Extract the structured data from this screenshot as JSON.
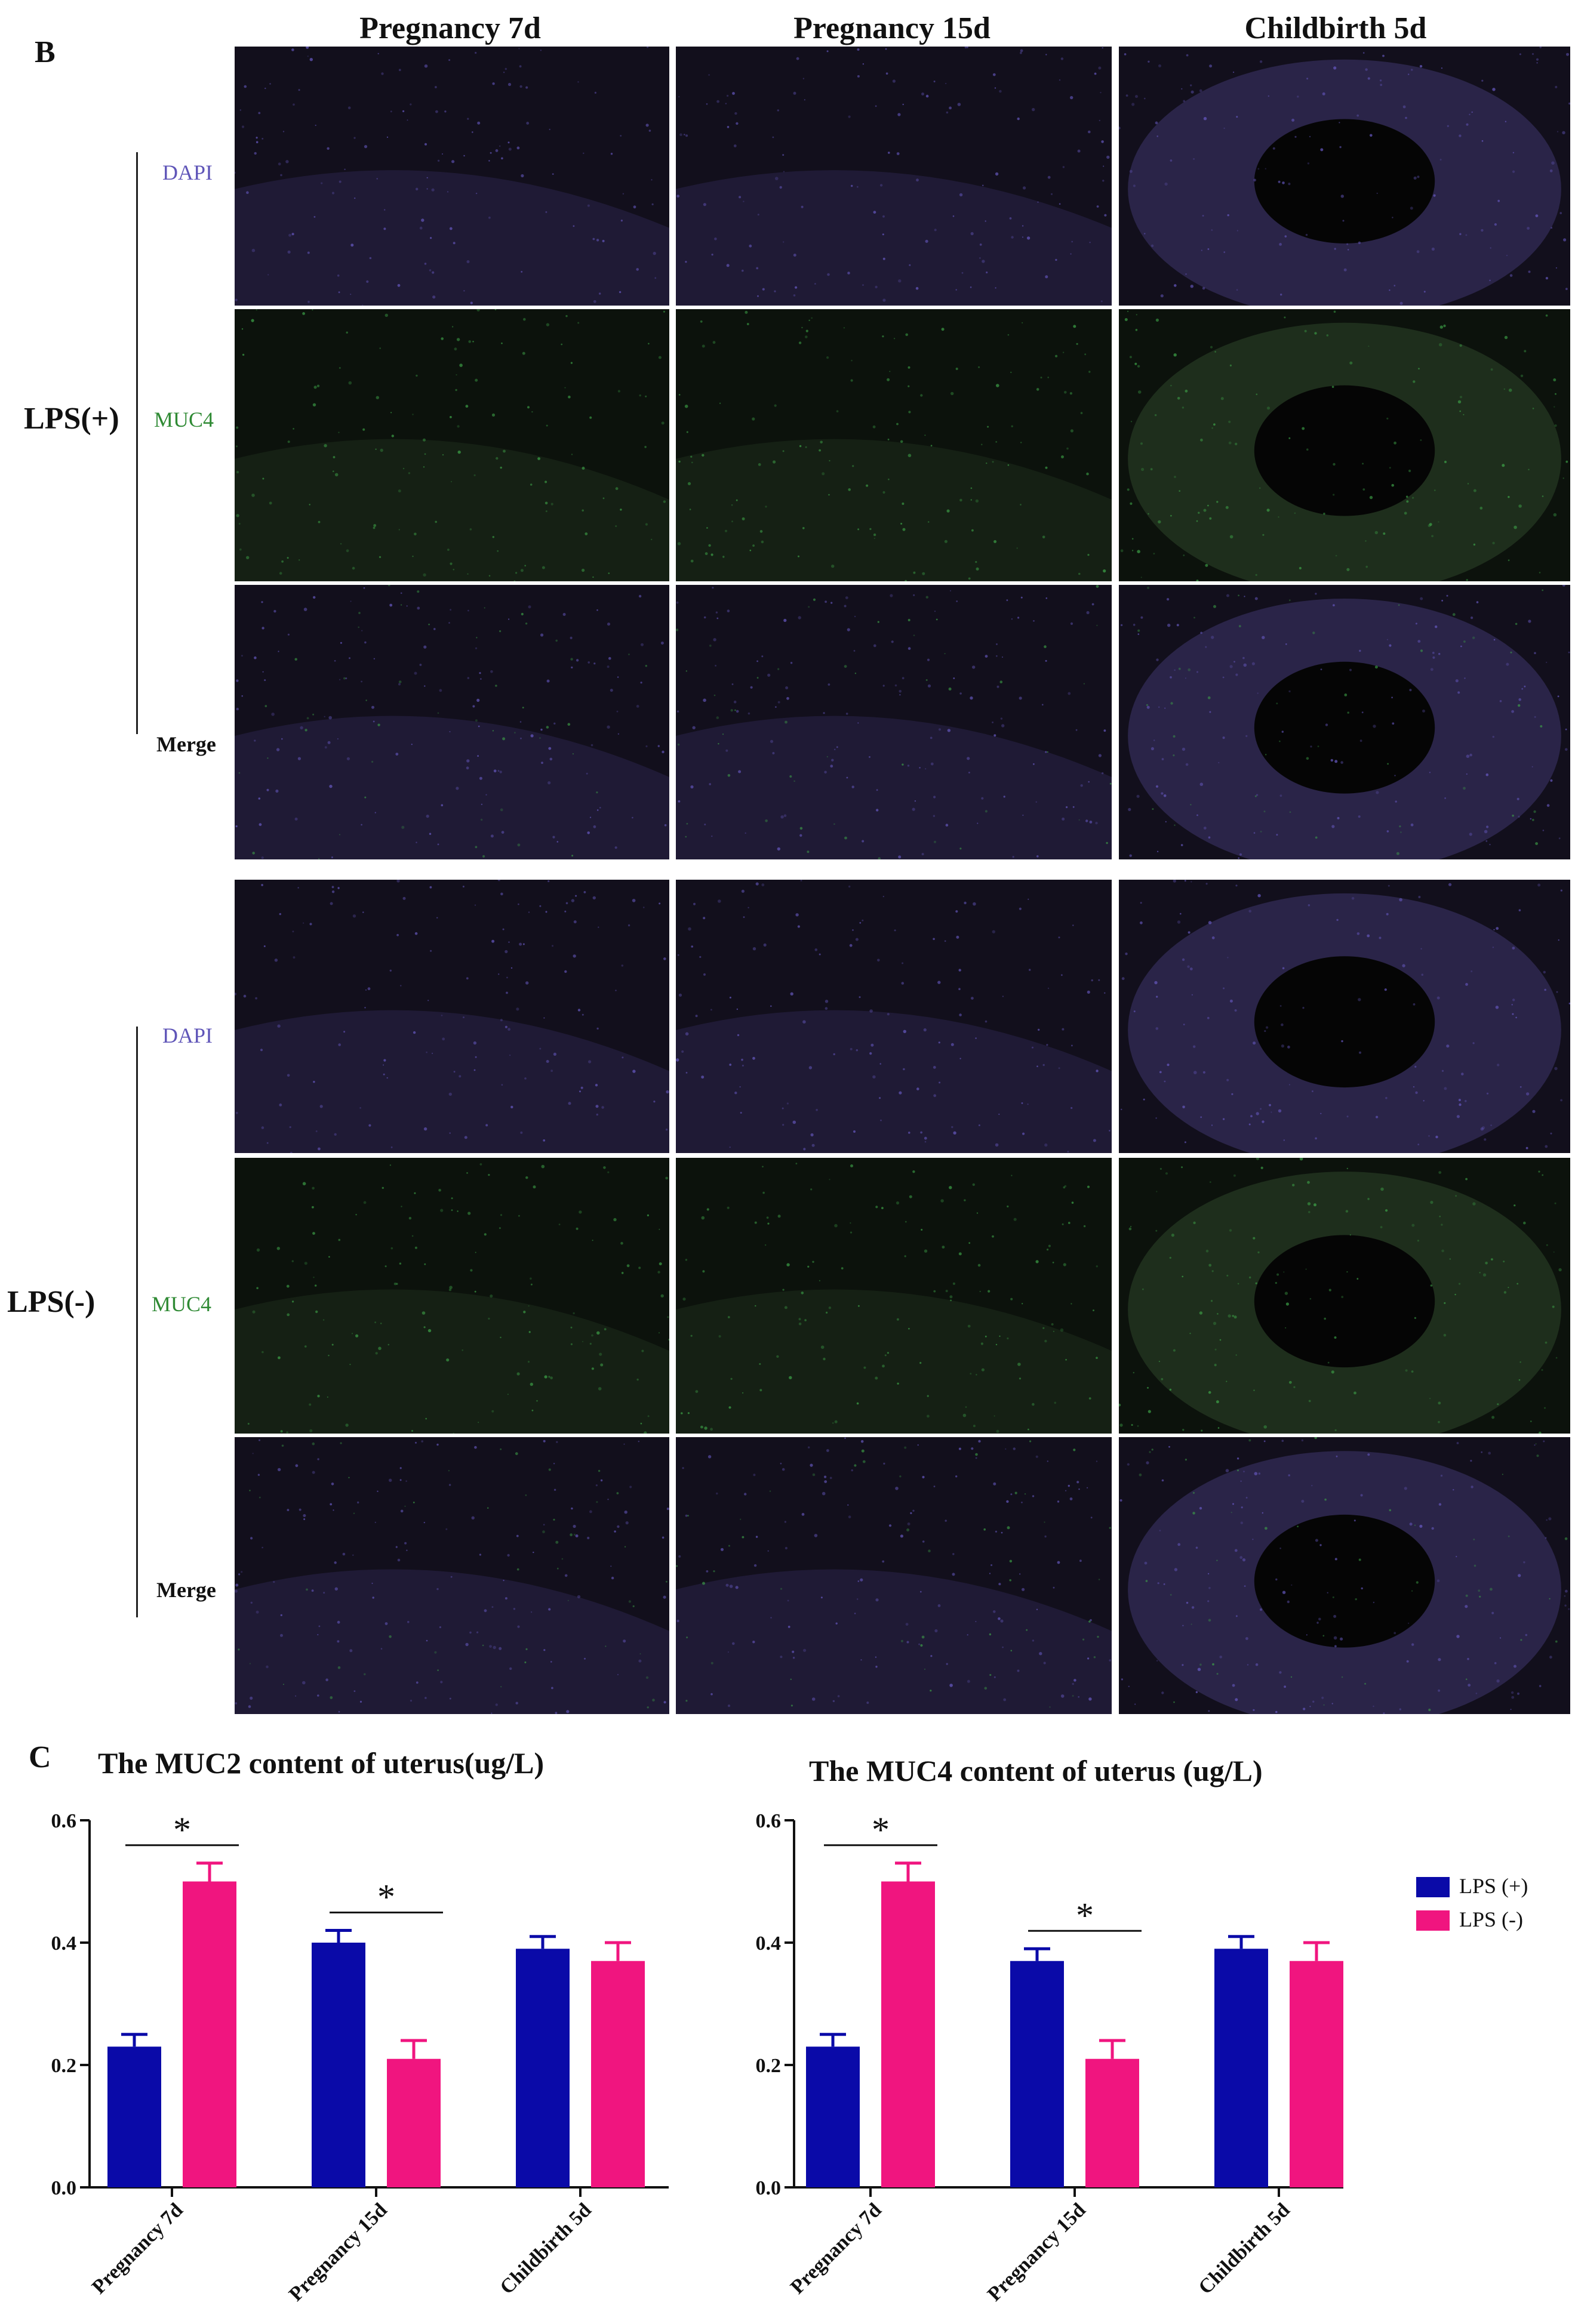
{
  "panel_b": {
    "label": "B",
    "columns": [
      "Pregnancy 7d",
      "Pregnancy 15d",
      "Childbirth 5d"
    ],
    "groups": [
      {
        "label": "LPS(+)",
        "channels": [
          "DAPI",
          "MUC4",
          "Merge"
        ]
      },
      {
        "label": "LPS(-)",
        "channels": [
          "DAPI",
          "MUC4",
          "Merge"
        ]
      }
    ],
    "stain_colors": {
      "DAPI": "#5f55b8",
      "MUC4": "#2f8a34",
      "Merge": "#111111"
    }
  },
  "panel_c": {
    "label": "C",
    "legend": [
      "LPS (+)",
      "LPS (-)"
    ],
    "legend_placement": "right"
  },
  "chart_data": [
    {
      "type": "bar",
      "title": "The MUC2 content of uterus(ug/L)",
      "categories": [
        "Pregnancy 7d",
        "Pregnancy 15d",
        "Childbirth 5d"
      ],
      "series": [
        {
          "name": "LPS (+)",
          "values": [
            0.23,
            0.4,
            0.39
          ],
          "errors": [
            0.02,
            0.02,
            0.02
          ],
          "color": "#0a0aa8"
        },
        {
          "name": "LPS (-)",
          "values": [
            0.5,
            0.21,
            0.37
          ],
          "errors": [
            0.03,
            0.03,
            0.03
          ],
          "color": "#f0157f"
        }
      ],
      "significance": [
        {
          "category": "Pregnancy 7d",
          "label": "*"
        },
        {
          "category": "Pregnancy 15d",
          "label": "*"
        }
      ],
      "yticks": [
        "0.0",
        "0.2",
        "0.4",
        "0.6"
      ],
      "ylim": [
        0,
        0.6
      ],
      "grid": false
    },
    {
      "type": "bar",
      "title": "The MUC4 content of uterus (ug/L)",
      "categories": [
        "Pregnancy 7d",
        "Pregnancy 15d",
        "Childbirth 5d"
      ],
      "series": [
        {
          "name": "LPS (+)",
          "values": [
            0.23,
            0.37,
            0.39
          ],
          "errors": [
            0.02,
            0.02,
            0.02
          ],
          "color": "#0a0aa8"
        },
        {
          "name": "LPS (-)",
          "values": [
            0.5,
            0.21,
            0.37
          ],
          "errors": [
            0.03,
            0.03,
            0.03
          ],
          "color": "#f0157f"
        }
      ],
      "significance": [
        {
          "category": "Pregnancy 7d",
          "label": "*"
        },
        {
          "category": "Pregnancy 15d",
          "label": "*"
        }
      ],
      "yticks": [
        "0.0",
        "0.2",
        "0.4",
        "0.6"
      ],
      "ylim": [
        0,
        0.6
      ],
      "grid": false
    }
  ]
}
